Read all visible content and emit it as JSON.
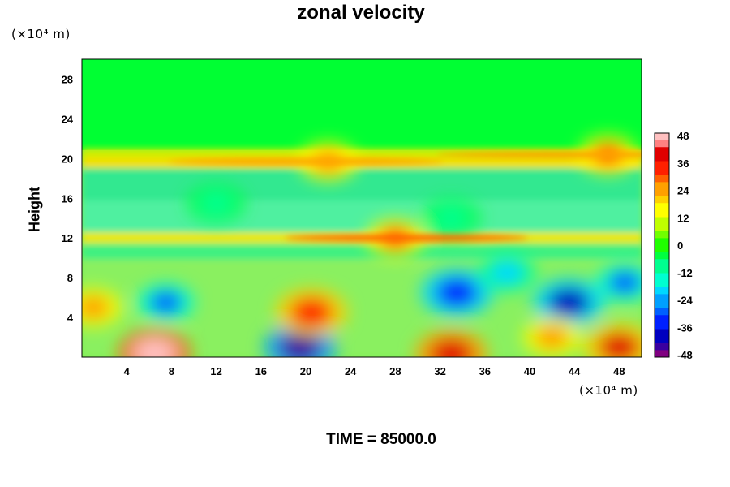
{
  "chart_data": {
    "type": "heatmap",
    "title": "zonal velocity",
    "ylabel": "Height",
    "xlabel": "",
    "y_unit": "(×10⁴ m)",
    "x_unit": "(×10⁴ m)",
    "x_ticks": [
      "4",
      "8",
      "12",
      "16",
      "20",
      "24",
      "28",
      "32",
      "36",
      "40",
      "44",
      "48"
    ],
    "y_ticks": [
      "4",
      "8",
      "12",
      "16",
      "20",
      "24",
      "28"
    ],
    "xlim": [
      0,
      50
    ],
    "ylim": [
      0,
      30
    ],
    "colorbar": {
      "ticks": [
        "48",
        "36",
        "24",
        "12",
        "0",
        "-12",
        "-24",
        "-36",
        "-48"
      ],
      "range": [
        -48,
        48
      ],
      "colors": [
        "#800080",
        "#3a00a0",
        "#0000c0",
        "#0020ff",
        "#0060ff",
        "#00a0ff",
        "#00d8ff",
        "#00ffd0",
        "#00ff90",
        "#00ff40",
        "#20ff00",
        "#70ff00",
        "#c0ff00",
        "#ffff00",
        "#ffd000",
        "#ffa000",
        "#ff6000",
        "#ff2000",
        "#e00000",
        "#ff8080",
        "#ffc0c0"
      ]
    },
    "features": [
      {
        "x": 6.5,
        "y": 0.4,
        "value": 48
      },
      {
        "x": 19.5,
        "y": 1.0,
        "value": -42
      },
      {
        "x": 20.5,
        "y": 4.5,
        "value": 34
      },
      {
        "x": 7.5,
        "y": 5.5,
        "value": -30
      },
      {
        "x": 33.5,
        "y": 6.5,
        "value": -36
      },
      {
        "x": 43.5,
        "y": 5.5,
        "value": -38
      },
      {
        "x": 48.5,
        "y": 7.5,
        "value": -30
      },
      {
        "x": 28.0,
        "y": 12.0,
        "value": 30
      },
      {
        "x": 22.0,
        "y": 19.7,
        "value": 22
      },
      {
        "x": 47.0,
        "y": 20.4,
        "value": 28
      },
      {
        "x": 38.0,
        "y": 8.5,
        "value": -18
      },
      {
        "x": 12.0,
        "y": 15.5,
        "value": -8
      },
      {
        "x": 33.0,
        "y": 14.0,
        "value": -12
      },
      {
        "x": 1.0,
        "y": 5.0,
        "value": 22
      },
      {
        "x": 42.0,
        "y": 2.0,
        "value": 26
      },
      {
        "x": 33.0,
        "y": 0.3,
        "value": 40
      },
      {
        "x": 48.0,
        "y": 1.0,
        "value": 36
      }
    ]
  },
  "footer": {
    "time_label": "TIME = 85000.0"
  }
}
